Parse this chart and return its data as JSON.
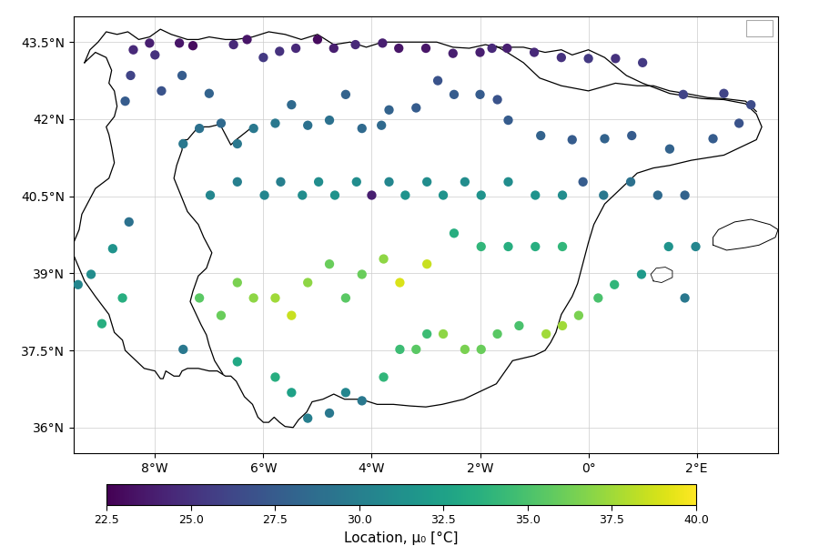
{
  "colorbar_label": "Location, μ₀ [°C]",
  "colormap": "viridis",
  "vmin": 22.5,
  "vmax": 40.0,
  "colorbar_ticks": [
    22.5,
    25.0,
    27.5,
    30.0,
    32.5,
    35.0,
    37.5,
    40.0
  ],
  "xlim": [
    -9.5,
    3.5
  ],
  "ylim": [
    35.5,
    44.0
  ],
  "xticks": [
    -8,
    -6,
    -4,
    -2,
    0,
    2
  ],
  "yticks": [
    36,
    37.5,
    39,
    40.5,
    42,
    43.5
  ],
  "xtick_labels": [
    "8°W",
    "6°W",
    "4°W",
    "2°W",
    "0°",
    "2°E"
  ],
  "ytick_labels": [
    "36°N",
    "37.5°N",
    "39°N",
    "40.5°N",
    "42°N",
    "43.5°N"
  ],
  "marker_size": 55,
  "stations": [
    {
      "lon": -8.55,
      "lat": 42.35,
      "val": 27.5
    },
    {
      "lon": -8.4,
      "lat": 43.35,
      "val": 24.5
    },
    {
      "lon": -8.1,
      "lat": 43.48,
      "val": 24.0
    },
    {
      "lon": -8.0,
      "lat": 43.25,
      "val": 25.0
    },
    {
      "lon": -8.45,
      "lat": 42.85,
      "val": 26.0
    },
    {
      "lon": -7.88,
      "lat": 42.55,
      "val": 27.0
    },
    {
      "lon": -7.55,
      "lat": 43.48,
      "val": 23.5
    },
    {
      "lon": -7.5,
      "lat": 42.85,
      "val": 27.5
    },
    {
      "lon": -7.3,
      "lat": 43.43,
      "val": 23.0
    },
    {
      "lon": -7.0,
      "lat": 42.5,
      "val": 28.0
    },
    {
      "lon": -6.55,
      "lat": 43.45,
      "val": 24.5
    },
    {
      "lon": -6.3,
      "lat": 43.55,
      "val": 23.5
    },
    {
      "lon": -6.0,
      "lat": 43.2,
      "val": 25.5
    },
    {
      "lon": -5.7,
      "lat": 43.32,
      "val": 25.0
    },
    {
      "lon": -5.4,
      "lat": 43.38,
      "val": 24.5
    },
    {
      "lon": -5.0,
      "lat": 43.55,
      "val": 23.0
    },
    {
      "lon": -4.7,
      "lat": 43.38,
      "val": 24.0
    },
    {
      "lon": -4.3,
      "lat": 43.45,
      "val": 24.5
    },
    {
      "lon": -3.8,
      "lat": 43.48,
      "val": 24.0
    },
    {
      "lon": -3.5,
      "lat": 43.38,
      "val": 23.5
    },
    {
      "lon": -3.0,
      "lat": 43.38,
      "val": 23.5
    },
    {
      "lon": -2.5,
      "lat": 43.28,
      "val": 24.0
    },
    {
      "lon": -2.0,
      "lat": 43.3,
      "val": 24.0
    },
    {
      "lon": -1.78,
      "lat": 43.38,
      "val": 24.5
    },
    {
      "lon": -1.5,
      "lat": 43.38,
      "val": 24.0
    },
    {
      "lon": -1.0,
      "lat": 43.3,
      "val": 24.5
    },
    {
      "lon": -0.5,
      "lat": 43.2,
      "val": 25.0
    },
    {
      "lon": 0.0,
      "lat": 43.18,
      "val": 25.5
    },
    {
      "lon": 0.5,
      "lat": 43.18,
      "val": 25.0
    },
    {
      "lon": 1.0,
      "lat": 43.1,
      "val": 25.5
    },
    {
      "lon": 1.75,
      "lat": 42.48,
      "val": 26.0
    },
    {
      "lon": 2.5,
      "lat": 42.5,
      "val": 26.0
    },
    {
      "lon": 3.0,
      "lat": 42.28,
      "val": 26.5
    },
    {
      "lon": 2.78,
      "lat": 41.92,
      "val": 27.0
    },
    {
      "lon": 2.3,
      "lat": 41.62,
      "val": 27.5
    },
    {
      "lon": 1.5,
      "lat": 41.42,
      "val": 28.0
    },
    {
      "lon": 0.8,
      "lat": 41.68,
      "val": 27.5
    },
    {
      "lon": 0.3,
      "lat": 41.62,
      "val": 28.0
    },
    {
      "lon": -0.3,
      "lat": 41.6,
      "val": 27.5
    },
    {
      "lon": -0.88,
      "lat": 41.68,
      "val": 28.0
    },
    {
      "lon": -1.48,
      "lat": 41.98,
      "val": 27.5
    },
    {
      "lon": -1.68,
      "lat": 42.38,
      "val": 27.0
    },
    {
      "lon": -2.0,
      "lat": 42.48,
      "val": 27.5
    },
    {
      "lon": -2.48,
      "lat": 42.48,
      "val": 27.5
    },
    {
      "lon": -2.78,
      "lat": 42.75,
      "val": 27.0
    },
    {
      "lon": -3.18,
      "lat": 42.22,
      "val": 27.5
    },
    {
      "lon": -3.68,
      "lat": 42.18,
      "val": 28.0
    },
    {
      "lon": -3.82,
      "lat": 41.88,
      "val": 28.5
    },
    {
      "lon": -4.18,
      "lat": 41.82,
      "val": 28.5
    },
    {
      "lon": -4.48,
      "lat": 42.48,
      "val": 28.0
    },
    {
      "lon": -4.78,
      "lat": 41.98,
      "val": 29.0
    },
    {
      "lon": -5.18,
      "lat": 41.88,
      "val": 29.0
    },
    {
      "lon": -5.48,
      "lat": 42.28,
      "val": 28.5
    },
    {
      "lon": -5.78,
      "lat": 41.92,
      "val": 29.5
    },
    {
      "lon": -6.18,
      "lat": 41.82,
      "val": 29.5
    },
    {
      "lon": -6.48,
      "lat": 41.52,
      "val": 29.5
    },
    {
      "lon": -6.78,
      "lat": 41.92,
      "val": 28.5
    },
    {
      "lon": -7.18,
      "lat": 41.82,
      "val": 29.0
    },
    {
      "lon": -7.48,
      "lat": 41.52,
      "val": 29.5
    },
    {
      "lon": -6.98,
      "lat": 40.52,
      "val": 30.5
    },
    {
      "lon": -6.48,
      "lat": 40.78,
      "val": 30.0
    },
    {
      "lon": -5.98,
      "lat": 40.52,
      "val": 30.5
    },
    {
      "lon": -5.68,
      "lat": 40.78,
      "val": 30.0
    },
    {
      "lon": -5.28,
      "lat": 40.52,
      "val": 31.0
    },
    {
      "lon": -4.98,
      "lat": 40.78,
      "val": 31.0
    },
    {
      "lon": -4.68,
      "lat": 40.52,
      "val": 31.5
    },
    {
      "lon": -4.28,
      "lat": 40.78,
      "val": 31.0
    },
    {
      "lon": -4.0,
      "lat": 40.52,
      "val": 24.0
    },
    {
      "lon": -3.68,
      "lat": 40.78,
      "val": 30.5
    },
    {
      "lon": -3.38,
      "lat": 40.52,
      "val": 31.5
    },
    {
      "lon": -2.98,
      "lat": 40.78,
      "val": 31.0
    },
    {
      "lon": -2.68,
      "lat": 40.52,
      "val": 31.5
    },
    {
      "lon": -2.28,
      "lat": 40.78,
      "val": 31.0
    },
    {
      "lon": -1.98,
      "lat": 40.52,
      "val": 31.5
    },
    {
      "lon": -1.48,
      "lat": 40.78,
      "val": 31.0
    },
    {
      "lon": -0.98,
      "lat": 40.52,
      "val": 31.5
    },
    {
      "lon": -0.48,
      "lat": 40.52,
      "val": 31.0
    },
    {
      "lon": -0.1,
      "lat": 40.78,
      "val": 27.5
    },
    {
      "lon": 0.28,
      "lat": 40.52,
      "val": 29.5
    },
    {
      "lon": 0.78,
      "lat": 40.78,
      "val": 29.0
    },
    {
      "lon": 1.28,
      "lat": 40.52,
      "val": 28.5
    },
    {
      "lon": 1.78,
      "lat": 40.52,
      "val": 28.0
    },
    {
      "lon": -0.48,
      "lat": 39.52,
      "val": 34.0
    },
    {
      "lon": -0.98,
      "lat": 39.52,
      "val": 33.5
    },
    {
      "lon": -1.48,
      "lat": 39.52,
      "val": 33.5
    },
    {
      "lon": -1.98,
      "lat": 39.52,
      "val": 34.0
    },
    {
      "lon": -2.48,
      "lat": 39.78,
      "val": 33.5
    },
    {
      "lon": -2.98,
      "lat": 39.18,
      "val": 38.5
    },
    {
      "lon": -3.48,
      "lat": 38.82,
      "val": 39.0
    },
    {
      "lon": -3.78,
      "lat": 39.28,
      "val": 37.0
    },
    {
      "lon": -4.18,
      "lat": 38.98,
      "val": 36.0
    },
    {
      "lon": -4.48,
      "lat": 38.52,
      "val": 35.5
    },
    {
      "lon": -4.78,
      "lat": 39.18,
      "val": 36.0
    },
    {
      "lon": -5.18,
      "lat": 38.82,
      "val": 37.0
    },
    {
      "lon": -5.48,
      "lat": 38.18,
      "val": 38.5
    },
    {
      "lon": -5.78,
      "lat": 38.52,
      "val": 37.5
    },
    {
      "lon": -6.18,
      "lat": 38.52,
      "val": 37.0
    },
    {
      "lon": -6.48,
      "lat": 38.82,
      "val": 36.5
    },
    {
      "lon": -6.78,
      "lat": 38.18,
      "val": 36.0
    },
    {
      "lon": -7.18,
      "lat": 38.52,
      "val": 35.5
    },
    {
      "lon": -7.48,
      "lat": 37.52,
      "val": 29.5
    },
    {
      "lon": -6.48,
      "lat": 37.28,
      "val": 33.0
    },
    {
      "lon": -5.78,
      "lat": 36.98,
      "val": 33.5
    },
    {
      "lon": -5.48,
      "lat": 36.68,
      "val": 32.5
    },
    {
      "lon": -5.18,
      "lat": 36.18,
      "val": 30.0
    },
    {
      "lon": -4.78,
      "lat": 36.28,
      "val": 29.5
    },
    {
      "lon": -4.48,
      "lat": 36.68,
      "val": 30.5
    },
    {
      "lon": -4.18,
      "lat": 36.52,
      "val": 29.5
    },
    {
      "lon": -3.78,
      "lat": 36.98,
      "val": 34.0
    },
    {
      "lon": -3.48,
      "lat": 37.52,
      "val": 34.5
    },
    {
      "lon": -3.18,
      "lat": 37.52,
      "val": 35.5
    },
    {
      "lon": -2.98,
      "lat": 37.82,
      "val": 34.5
    },
    {
      "lon": -2.68,
      "lat": 37.82,
      "val": 37.0
    },
    {
      "lon": -2.28,
      "lat": 37.52,
      "val": 36.5
    },
    {
      "lon": -1.98,
      "lat": 37.52,
      "val": 36.0
    },
    {
      "lon": -1.68,
      "lat": 37.82,
      "val": 35.5
    },
    {
      "lon": -1.28,
      "lat": 37.98,
      "val": 35.0
    },
    {
      "lon": -0.78,
      "lat": 37.82,
      "val": 37.5
    },
    {
      "lon": -0.48,
      "lat": 37.98,
      "val": 37.5
    },
    {
      "lon": -0.18,
      "lat": 38.18,
      "val": 36.5
    },
    {
      "lon": 0.18,
      "lat": 38.52,
      "val": 35.0
    },
    {
      "lon": 0.48,
      "lat": 38.78,
      "val": 34.0
    },
    {
      "lon": 0.98,
      "lat": 38.98,
      "val": 32.0
    },
    {
      "lon": 1.48,
      "lat": 39.52,
      "val": 31.5
    },
    {
      "lon": 1.98,
      "lat": 39.52,
      "val": 30.5
    },
    {
      "lon": 1.78,
      "lat": 38.52,
      "val": 29.5
    },
    {
      "lon": -8.6,
      "lat": 38.52,
      "val": 33.5
    },
    {
      "lon": -8.78,
      "lat": 39.48,
      "val": 31.5
    },
    {
      "lon": -8.48,
      "lat": 40.0,
      "val": 29.0
    },
    {
      "lon": -8.98,
      "lat": 38.02,
      "val": 33.5
    },
    {
      "lon": -9.18,
      "lat": 38.98,
      "val": 31.0
    },
    {
      "lon": -9.42,
      "lat": 38.78,
      "val": 30.5
    }
  ],
  "spain_coast": [
    [
      -9.3,
      43.1
    ],
    [
      -9.2,
      43.35
    ],
    [
      -9.05,
      43.5
    ],
    [
      -8.9,
      43.7
    ],
    [
      -8.7,
      43.65
    ],
    [
      -8.5,
      43.7
    ],
    [
      -8.3,
      43.55
    ],
    [
      -8.1,
      43.6
    ],
    [
      -7.9,
      43.75
    ],
    [
      -7.7,
      43.65
    ],
    [
      -7.4,
      43.55
    ],
    [
      -7.2,
      43.55
    ],
    [
      -7.0,
      43.6
    ],
    [
      -6.7,
      43.55
    ],
    [
      -6.5,
      43.55
    ],
    [
      -6.2,
      43.6
    ],
    [
      -5.9,
      43.7
    ],
    [
      -5.6,
      43.65
    ],
    [
      -5.3,
      43.55
    ],
    [
      -5.0,
      43.65
    ],
    [
      -4.7,
      43.45
    ],
    [
      -4.4,
      43.5
    ],
    [
      -4.1,
      43.4
    ],
    [
      -3.8,
      43.5
    ],
    [
      -3.5,
      43.5
    ],
    [
      -3.2,
      43.5
    ],
    [
      -2.8,
      43.5
    ],
    [
      -2.5,
      43.4
    ],
    [
      -2.2,
      43.38
    ],
    [
      -1.9,
      43.45
    ],
    [
      -1.7,
      43.4
    ],
    [
      -1.5,
      43.4
    ],
    [
      -1.2,
      43.4
    ],
    [
      -0.8,
      43.3
    ],
    [
      -0.5,
      43.35
    ],
    [
      -0.3,
      43.25
    ],
    [
      0.0,
      43.35
    ],
    [
      0.3,
      43.2
    ],
    [
      0.7,
      42.85
    ],
    [
      1.0,
      42.7
    ],
    [
      1.5,
      42.5
    ],
    [
      1.8,
      42.45
    ],
    [
      2.1,
      42.4
    ],
    [
      2.5,
      42.38
    ],
    [
      2.9,
      42.3
    ],
    [
      3.1,
      42.1
    ],
    [
      3.2,
      41.85
    ],
    [
      3.1,
      41.6
    ],
    [
      2.8,
      41.45
    ],
    [
      2.5,
      41.3
    ],
    [
      2.2,
      41.25
    ],
    [
      1.9,
      41.2
    ],
    [
      1.5,
      41.1
    ],
    [
      1.2,
      41.05
    ],
    [
      0.9,
      40.95
    ],
    [
      0.5,
      40.55
    ],
    [
      0.3,
      40.35
    ],
    [
      0.1,
      39.95
    ],
    [
      0.0,
      39.6
    ],
    [
      -0.1,
      39.2
    ],
    [
      -0.2,
      38.8
    ],
    [
      -0.3,
      38.55
    ],
    [
      -0.5,
      38.2
    ],
    [
      -0.6,
      37.85
    ],
    [
      -0.7,
      37.65
    ],
    [
      -0.8,
      37.5
    ],
    [
      -1.0,
      37.4
    ],
    [
      -1.2,
      37.35
    ],
    [
      -1.4,
      37.3
    ],
    [
      -1.7,
      36.85
    ],
    [
      -1.9,
      36.75
    ],
    [
      -2.1,
      36.65
    ],
    [
      -2.3,
      36.55
    ],
    [
      -2.5,
      36.5
    ],
    [
      -2.7,
      36.45
    ],
    [
      -3.0,
      36.4
    ],
    [
      -3.3,
      36.42
    ],
    [
      -3.6,
      36.45
    ],
    [
      -3.9,
      36.45
    ],
    [
      -4.2,
      36.55
    ],
    [
      -4.5,
      36.55
    ],
    [
      -4.7,
      36.65
    ],
    [
      -4.9,
      36.55
    ],
    [
      -5.1,
      36.5
    ],
    [
      -5.2,
      36.3
    ],
    [
      -5.35,
      36.15
    ],
    [
      -5.45,
      36.0
    ],
    [
      -5.6,
      36.02
    ],
    [
      -5.7,
      36.1
    ],
    [
      -5.8,
      36.2
    ],
    [
      -5.9,
      36.1
    ],
    [
      -6.0,
      36.1
    ],
    [
      -6.1,
      36.2
    ],
    [
      -6.2,
      36.45
    ],
    [
      -6.35,
      36.6
    ],
    [
      -6.5,
      36.9
    ],
    [
      -6.6,
      37.0
    ],
    [
      -6.7,
      37.0
    ],
    [
      -6.85,
      37.1
    ],
    [
      -7.0,
      37.1
    ],
    [
      -7.2,
      37.15
    ],
    [
      -7.4,
      37.15
    ],
    [
      -7.5,
      37.1
    ],
    [
      -7.55,
      37.0
    ],
    [
      -7.65,
      37.0
    ],
    [
      -7.8,
      37.1
    ],
    [
      -7.85,
      36.95
    ],
    [
      -7.9,
      36.95
    ],
    [
      -8.0,
      37.1
    ],
    [
      -8.2,
      37.15
    ],
    [
      -8.4,
      37.35
    ],
    [
      -8.55,
      37.5
    ],
    [
      -8.6,
      37.7
    ],
    [
      -8.75,
      37.85
    ],
    [
      -8.85,
      38.2
    ],
    [
      -9.1,
      38.55
    ],
    [
      -9.2,
      38.7
    ],
    [
      -9.3,
      38.85
    ],
    [
      -9.4,
      39.1
    ],
    [
      -9.5,
      39.35
    ],
    [
      -9.5,
      39.6
    ],
    [
      -9.4,
      39.85
    ],
    [
      -9.35,
      40.15
    ],
    [
      -9.2,
      40.45
    ],
    [
      -9.1,
      40.65
    ],
    [
      -8.85,
      40.85
    ],
    [
      -8.75,
      41.15
    ],
    [
      -8.8,
      41.45
    ],
    [
      -8.85,
      41.7
    ],
    [
      -8.9,
      41.85
    ],
    [
      -8.75,
      42.05
    ],
    [
      -8.7,
      42.25
    ],
    [
      -8.75,
      42.55
    ],
    [
      -8.85,
      42.7
    ],
    [
      -8.8,
      42.95
    ],
    [
      -8.9,
      43.2
    ],
    [
      -9.1,
      43.3
    ],
    [
      -9.3,
      43.1
    ]
  ],
  "portugal_border": [
    [
      -6.2,
      41.85
    ],
    [
      -6.5,
      41.6
    ],
    [
      -6.6,
      41.5
    ],
    [
      -6.8,
      41.9
    ],
    [
      -7.0,
      41.85
    ],
    [
      -7.2,
      41.85
    ],
    [
      -7.4,
      41.6
    ],
    [
      -7.5,
      41.6
    ],
    [
      -7.5,
      41.4
    ],
    [
      -7.6,
      41.1
    ],
    [
      -7.65,
      40.85
    ],
    [
      -7.4,
      40.2
    ],
    [
      -7.2,
      39.95
    ],
    [
      -7.1,
      39.7
    ],
    [
      -6.95,
      39.4
    ],
    [
      -7.05,
      39.1
    ],
    [
      -7.2,
      38.95
    ],
    [
      -7.3,
      38.65
    ],
    [
      -7.35,
      38.45
    ],
    [
      -7.15,
      38.0
    ],
    [
      -7.05,
      37.8
    ],
    [
      -7.0,
      37.6
    ],
    [
      -6.9,
      37.3
    ],
    [
      -6.75,
      37.05
    ]
  ],
  "pyrenees_border": [
    [
      -1.7,
      43.42
    ],
    [
      -1.5,
      43.3
    ],
    [
      -1.2,
      43.1
    ],
    [
      -0.9,
      42.8
    ],
    [
      -0.5,
      42.65
    ],
    [
      0.0,
      42.55
    ],
    [
      0.5,
      42.7
    ],
    [
      0.9,
      42.65
    ],
    [
      1.2,
      42.65
    ],
    [
      1.5,
      42.55
    ],
    [
      1.8,
      42.5
    ],
    [
      2.2,
      42.42
    ],
    [
      2.5,
      42.4
    ],
    [
      2.9,
      42.35
    ],
    [
      3.1,
      42.15
    ]
  ]
}
